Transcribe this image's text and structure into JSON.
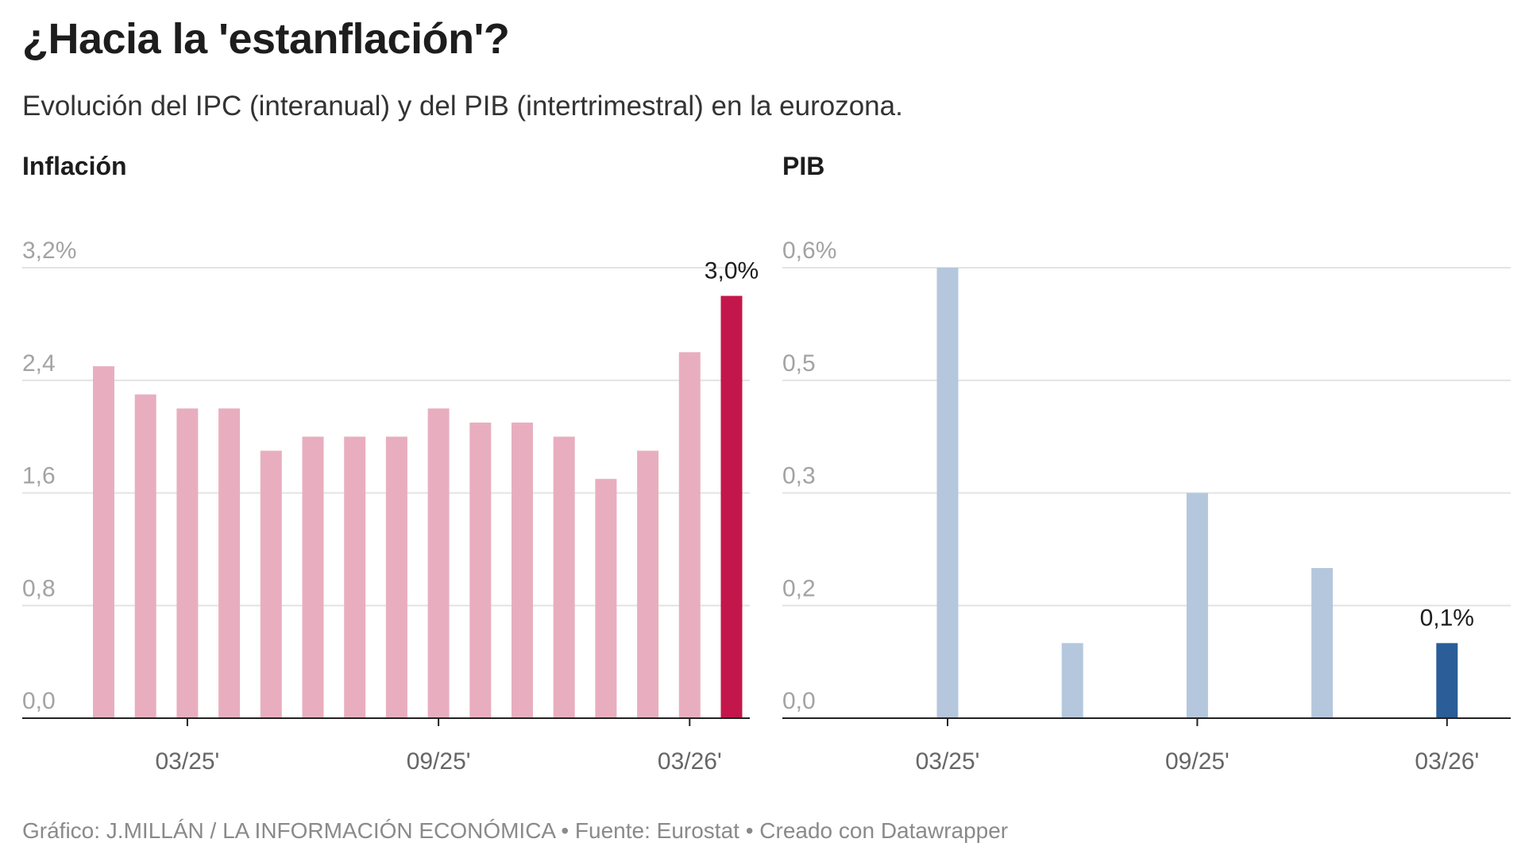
{
  "title": "¿Hacia la 'estanflación'?",
  "subtitle": "Evolución del IPC (interanual) y del PIB (intertrimestral) en la eurozona.",
  "footer": "Gráfico: J.MILLÁN / LA INFORMACIÓN ECONÓMICA • Fuente: Eurostat • Creado con Datawrapper",
  "chart_data": [
    {
      "type": "bar",
      "title": "Inflación",
      "categories": [
        "01/25",
        "02/25",
        "03/25",
        "04/25",
        "05/25",
        "06/25",
        "07/25",
        "08/25",
        "09/25",
        "10/25",
        "11/25",
        "12/25",
        "01/26",
        "02/26",
        "03/26",
        "04/26"
      ],
      "values": [
        2.5,
        2.3,
        2.2,
        2.2,
        1.9,
        2.0,
        2.0,
        2.0,
        2.2,
        2.1,
        2.1,
        2.0,
        1.7,
        1.9,
        2.6,
        3.0
      ],
      "ylim": [
        0,
        3.2
      ],
      "yticks": [
        0,
        0.8,
        1.6,
        2.4,
        3.2
      ],
      "ytick_labels": [
        "0,0",
        "0,8",
        "1,6",
        "2,4",
        "3,2%"
      ],
      "xticks": [
        "03/25",
        "09/25",
        "03/26"
      ],
      "xtick_labels": [
        "03/25'",
        "09/25'",
        "03/26'"
      ],
      "highlight_index": 15,
      "highlight_label": "3,0%",
      "grid": true,
      "colors": {
        "bar": "#e8aebf",
        "highlight": "#c3174b"
      }
    },
    {
      "type": "bar",
      "title": "PIB",
      "categories": [
        "03/25",
        "06/25",
        "09/25",
        "12/25",
        "03/26"
      ],
      "values": [
        0.6,
        0.1,
        0.3,
        0.2,
        0.1
      ],
      "ylim": [
        0,
        0.6
      ],
      "yticks": [
        0,
        0.15,
        0.3,
        0.45,
        0.6
      ],
      "ytick_labels": [
        "0,0",
        "0,2",
        "0,3",
        "0,5",
        "0,6%"
      ],
      "xticks": [
        "03/25",
        "09/25",
        "03/26"
      ],
      "xtick_labels": [
        "03/25'",
        "09/25'",
        "03/26'"
      ],
      "highlight_index": 4,
      "highlight_label": "0,1%",
      "grid": true,
      "colors": {
        "bar": "#b4c7dd",
        "highlight": "#2b5d98"
      }
    }
  ]
}
